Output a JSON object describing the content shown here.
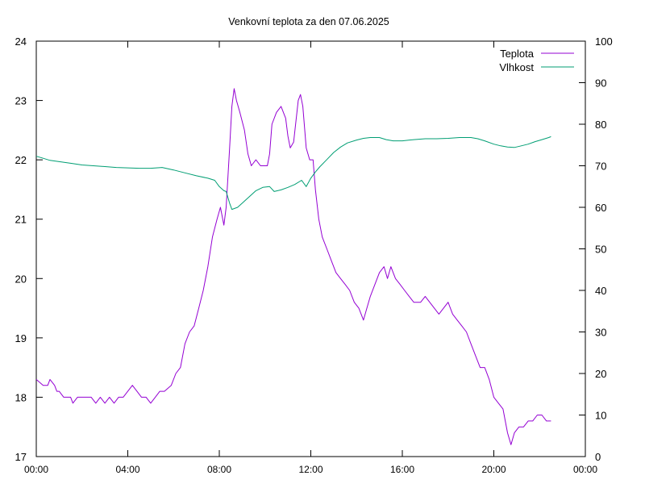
{
  "chart_data": {
    "type": "line",
    "title": "Venkovní teplota za den 07.06.2025",
    "x_ticks": [
      "00:00",
      "04:00",
      "08:00",
      "12:00",
      "16:00",
      "20:00",
      "00:00"
    ],
    "xlim": [
      0,
      24
    ],
    "ylim_left": [
      17,
      24
    ],
    "yticks_left": [
      "17",
      "18",
      "19",
      "20",
      "21",
      "22",
      "23",
      "24"
    ],
    "ylim_right": [
      0,
      100
    ],
    "yticks_right": [
      "0",
      "10",
      "20",
      "30",
      "40",
      "50",
      "60",
      "70",
      "80",
      "90",
      "100"
    ],
    "legend_position": "top-right",
    "grid": false,
    "series": [
      {
        "name": "Teplota",
        "axis": "left",
        "color": "#9400d3",
        "points": [
          [
            0.0,
            18.3
          ],
          [
            0.3,
            18.2
          ],
          [
            0.5,
            18.2
          ],
          [
            0.6,
            18.3
          ],
          [
            0.8,
            18.2
          ],
          [
            0.9,
            18.1
          ],
          [
            1.0,
            18.1
          ],
          [
            1.2,
            18.0
          ],
          [
            1.5,
            18.0
          ],
          [
            1.6,
            17.9
          ],
          [
            1.8,
            18.0
          ],
          [
            2.0,
            18.0
          ],
          [
            2.2,
            18.0
          ],
          [
            2.4,
            18.0
          ],
          [
            2.6,
            17.9
          ],
          [
            2.8,
            18.0
          ],
          [
            3.0,
            17.9
          ],
          [
            3.2,
            18.0
          ],
          [
            3.4,
            17.9
          ],
          [
            3.6,
            18.0
          ],
          [
            3.8,
            18.0
          ],
          [
            4.0,
            18.1
          ],
          [
            4.2,
            18.2
          ],
          [
            4.4,
            18.1
          ],
          [
            4.6,
            18.0
          ],
          [
            4.8,
            18.0
          ],
          [
            5.0,
            17.9
          ],
          [
            5.2,
            18.0
          ],
          [
            5.4,
            18.1
          ],
          [
            5.6,
            18.1
          ],
          [
            5.9,
            18.2
          ],
          [
            6.1,
            18.4
          ],
          [
            6.3,
            18.5
          ],
          [
            6.5,
            18.9
          ],
          [
            6.7,
            19.1
          ],
          [
            6.9,
            19.2
          ],
          [
            7.1,
            19.5
          ],
          [
            7.3,
            19.8
          ],
          [
            7.5,
            20.2
          ],
          [
            7.7,
            20.7
          ],
          [
            7.9,
            21.0
          ],
          [
            8.05,
            21.2
          ],
          [
            8.2,
            20.9
          ],
          [
            8.3,
            21.2
          ],
          [
            8.45,
            22.2
          ],
          [
            8.55,
            22.9
          ],
          [
            8.65,
            23.2
          ],
          [
            8.75,
            23.0
          ],
          [
            8.9,
            22.8
          ],
          [
            9.1,
            22.5
          ],
          [
            9.25,
            22.1
          ],
          [
            9.4,
            21.9
          ],
          [
            9.6,
            22.0
          ],
          [
            9.8,
            21.9
          ],
          [
            10.1,
            21.9
          ],
          [
            10.2,
            22.1
          ],
          [
            10.3,
            22.6
          ],
          [
            10.5,
            22.8
          ],
          [
            10.7,
            22.9
          ],
          [
            10.9,
            22.7
          ],
          [
            11.0,
            22.4
          ],
          [
            11.1,
            22.2
          ],
          [
            11.25,
            22.3
          ],
          [
            11.45,
            23.0
          ],
          [
            11.55,
            23.1
          ],
          [
            11.65,
            22.9
          ],
          [
            11.8,
            22.2
          ],
          [
            11.95,
            22.0
          ],
          [
            12.1,
            22.0
          ],
          [
            12.2,
            21.5
          ],
          [
            12.35,
            21.0
          ],
          [
            12.5,
            20.7
          ],
          [
            12.7,
            20.5
          ],
          [
            12.9,
            20.3
          ],
          [
            13.1,
            20.1
          ],
          [
            13.3,
            20.0
          ],
          [
            13.5,
            19.9
          ],
          [
            13.7,
            19.8
          ],
          [
            13.9,
            19.6
          ],
          [
            14.1,
            19.5
          ],
          [
            14.3,
            19.3
          ],
          [
            14.45,
            19.5
          ],
          [
            14.6,
            19.7
          ],
          [
            14.8,
            19.9
          ],
          [
            15.0,
            20.1
          ],
          [
            15.2,
            20.2
          ],
          [
            15.35,
            20.0
          ],
          [
            15.5,
            20.2
          ],
          [
            15.7,
            20.0
          ],
          [
            15.9,
            19.9
          ],
          [
            16.1,
            19.8
          ],
          [
            16.3,
            19.7
          ],
          [
            16.5,
            19.6
          ],
          [
            16.8,
            19.6
          ],
          [
            17.0,
            19.7
          ],
          [
            17.2,
            19.6
          ],
          [
            17.4,
            19.5
          ],
          [
            17.6,
            19.4
          ],
          [
            17.8,
            19.5
          ],
          [
            18.0,
            19.6
          ],
          [
            18.2,
            19.4
          ],
          [
            18.4,
            19.3
          ],
          [
            18.6,
            19.2
          ],
          [
            18.8,
            19.1
          ],
          [
            19.0,
            18.9
          ],
          [
            19.2,
            18.7
          ],
          [
            19.4,
            18.5
          ],
          [
            19.6,
            18.5
          ],
          [
            19.8,
            18.3
          ],
          [
            20.0,
            18.0
          ],
          [
            20.2,
            17.9
          ],
          [
            20.4,
            17.8
          ],
          [
            20.5,
            17.6
          ],
          [
            20.6,
            17.4
          ],
          [
            20.75,
            17.2
          ],
          [
            20.9,
            17.4
          ],
          [
            21.1,
            17.5
          ],
          [
            21.3,
            17.5
          ],
          [
            21.5,
            17.6
          ],
          [
            21.7,
            17.6
          ],
          [
            21.9,
            17.7
          ],
          [
            22.1,
            17.7
          ],
          [
            22.3,
            17.6
          ],
          [
            22.5,
            17.6
          ]
        ]
      },
      {
        "name": "Vlhkost",
        "axis": "right",
        "color": "#009e73",
        "points": [
          [
            0.0,
            72.3
          ],
          [
            0.3,
            71.8
          ],
          [
            0.6,
            71.3
          ],
          [
            1.0,
            71.0
          ],
          [
            1.5,
            70.6
          ],
          [
            2.0,
            70.2
          ],
          [
            2.5,
            70.0
          ],
          [
            3.0,
            69.8
          ],
          [
            3.5,
            69.6
          ],
          [
            4.0,
            69.5
          ],
          [
            4.5,
            69.4
          ],
          [
            5.0,
            69.4
          ],
          [
            5.5,
            69.6
          ],
          [
            6.0,
            69.0
          ],
          [
            6.5,
            68.3
          ],
          [
            7.0,
            67.6
          ],
          [
            7.5,
            67.0
          ],
          [
            7.8,
            66.5
          ],
          [
            8.0,
            65.0
          ],
          [
            8.2,
            64.0
          ],
          [
            8.3,
            63.8
          ],
          [
            8.45,
            61.0
          ],
          [
            8.55,
            59.5
          ],
          [
            8.8,
            60.0
          ],
          [
            9.0,
            61.0
          ],
          [
            9.3,
            62.5
          ],
          [
            9.6,
            64.0
          ],
          [
            9.9,
            64.8
          ],
          [
            10.2,
            65.0
          ],
          [
            10.4,
            63.8
          ],
          [
            10.7,
            64.2
          ],
          [
            11.0,
            64.8
          ],
          [
            11.3,
            65.5
          ],
          [
            11.6,
            66.5
          ],
          [
            11.8,
            65.0
          ],
          [
            12.0,
            67.0
          ],
          [
            12.2,
            68.5
          ],
          [
            12.4,
            69.8
          ],
          [
            12.7,
            71.5
          ],
          [
            13.0,
            73.2
          ],
          [
            13.3,
            74.5
          ],
          [
            13.6,
            75.5
          ],
          [
            14.0,
            76.2
          ],
          [
            14.3,
            76.6
          ],
          [
            14.6,
            76.8
          ],
          [
            15.0,
            76.8
          ],
          [
            15.3,
            76.3
          ],
          [
            15.6,
            76.0
          ],
          [
            16.0,
            76.0
          ],
          [
            16.5,
            76.3
          ],
          [
            17.0,
            76.5
          ],
          [
            17.5,
            76.5
          ],
          [
            18.0,
            76.6
          ],
          [
            18.5,
            76.8
          ],
          [
            19.0,
            76.8
          ],
          [
            19.3,
            76.5
          ],
          [
            19.6,
            76.0
          ],
          [
            20.0,
            75.2
          ],
          [
            20.3,
            74.8
          ],
          [
            20.6,
            74.5
          ],
          [
            20.9,
            74.4
          ],
          [
            21.2,
            74.8
          ],
          [
            21.5,
            75.2
          ],
          [
            21.8,
            75.8
          ],
          [
            22.1,
            76.3
          ],
          [
            22.4,
            76.8
          ],
          [
            22.5,
            77.0
          ]
        ]
      }
    ]
  }
}
